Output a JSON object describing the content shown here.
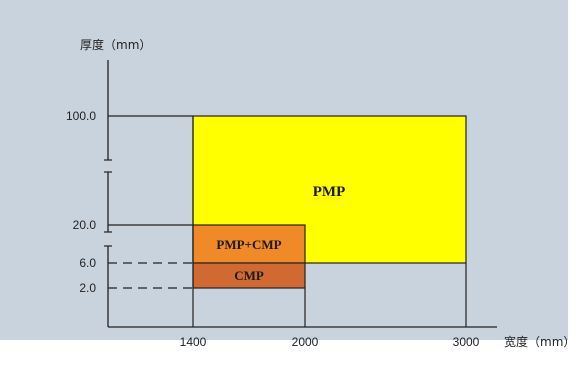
{
  "chart_data": {
    "type": "region",
    "ylabel": "厚度（mm）",
    "xlabel": "宽度（mm）",
    "x_ticks": [
      "1400",
      "2000",
      "3000"
    ],
    "y_ticks": [
      "100.0",
      "20.0",
      "6.0",
      "2.0"
    ],
    "regions": [
      {
        "name": "PMP",
        "x": [
          1400,
          3000
        ],
        "y": [
          6.0,
          100.0
        ],
        "color": "#ffff00"
      },
      {
        "name": "PMP+CMP",
        "x": [
          1400,
          2000
        ],
        "y": [
          6.0,
          20.0
        ],
        "color": "#f08a28"
      },
      {
        "name": "CMP",
        "x": [
          1400,
          2000
        ],
        "y": [
          2.0,
          6.0
        ],
        "color": "#d06a32"
      }
    ],
    "axis_break": "y, between 20.0 and 100.0 and below 20.0",
    "grid": false,
    "legend": "none"
  }
}
